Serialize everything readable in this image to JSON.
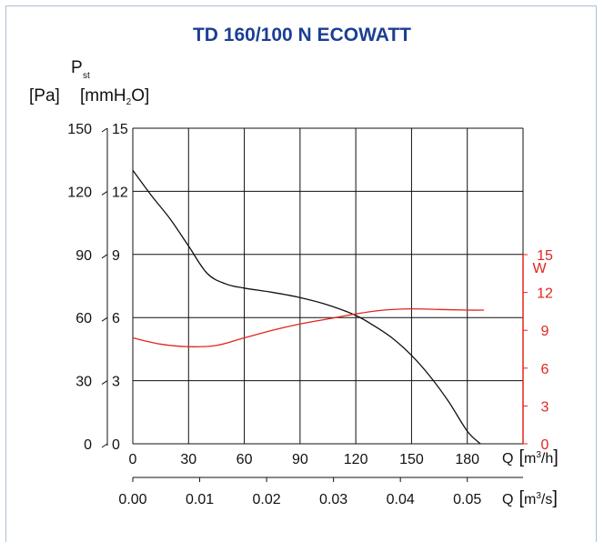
{
  "chart_data": {
    "type": "line",
    "title": "TD 160/100 N ECOWATT",
    "y_label": {
      "symbol": "P",
      "subscript": "st",
      "unit_pa": "[Pa]",
      "unit_mm_a": "[mmH",
      "unit_mm_sub": "2",
      "unit_mm_b": "O]"
    },
    "y_ticks_pa": [
      "150",
      "120",
      "90",
      "60",
      "30",
      "0"
    ],
    "y_ticks_mm": [
      "15",
      "12",
      "9",
      "6",
      "3",
      "0"
    ],
    "y_right_label": "W",
    "y_right_ticks": [
      "15",
      "12",
      "9",
      "6",
      "3",
      "0"
    ],
    "x_ticks_m3h": [
      "0",
      "30",
      "60",
      "90",
      "120",
      "150",
      "180"
    ],
    "x_label_m3h": {
      "q": "Q",
      "unit_a": "m",
      "unit_sup": "3",
      "unit_b": "/h"
    },
    "x_ticks_m3s": [
      "0.00",
      "0.01",
      "0.02",
      "0.03",
      "0.04",
      "0.05"
    ],
    "x_label_m3s": {
      "q": "Q",
      "unit_a": "m",
      "unit_sup": "3",
      "unit_b": "/s"
    },
    "xlim_m3h": [
      0,
      210
    ],
    "ylim_pa": [
      0,
      150
    ],
    "ylim_w": [
      0,
      15
    ],
    "grid": true,
    "series": [
      {
        "color": "#111111",
        "axis": "pressure",
        "x": [
          0,
          10,
          20,
          30,
          40,
          50,
          60,
          75,
          90,
          105,
          120,
          130,
          140,
          150,
          160,
          170,
          180,
          187
        ],
        "y": [
          130,
          118,
          107,
          94,
          81,
          76,
          74,
          72,
          69.5,
          66,
          61,
          56,
          50,
          42,
          32,
          20,
          6,
          0
        ]
      },
      {
        "color": "#e1261c",
        "axis": "power",
        "x": [
          0,
          15,
          30,
          45,
          60,
          75,
          90,
          105,
          120,
          135,
          150,
          165,
          180,
          189
        ],
        "y": [
          8.4,
          7.9,
          7.7,
          7.8,
          8.4,
          9.0,
          9.5,
          9.9,
          10.3,
          10.6,
          10.7,
          10.65,
          10.6,
          10.6
        ]
      }
    ],
    "colors": {
      "title": "#1c3f94",
      "power": "#e1261c",
      "pressure": "#111111",
      "frame": "#a9bfd8"
    }
  }
}
